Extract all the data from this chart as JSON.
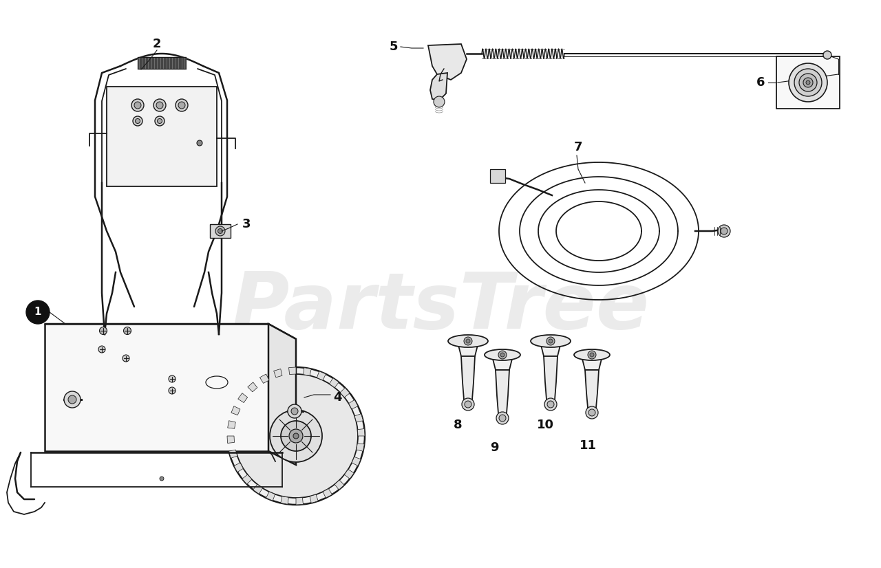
{
  "bg_color": "#ffffff",
  "line_color": "#1a1a1a",
  "watermark_color": "#cccccc",
  "watermark_text": "PartsTree",
  "figsize": [
    12.8,
    8.26
  ],
  "dpi": 100,
  "label_fs": 13,
  "watermark_alpha": 0.38
}
